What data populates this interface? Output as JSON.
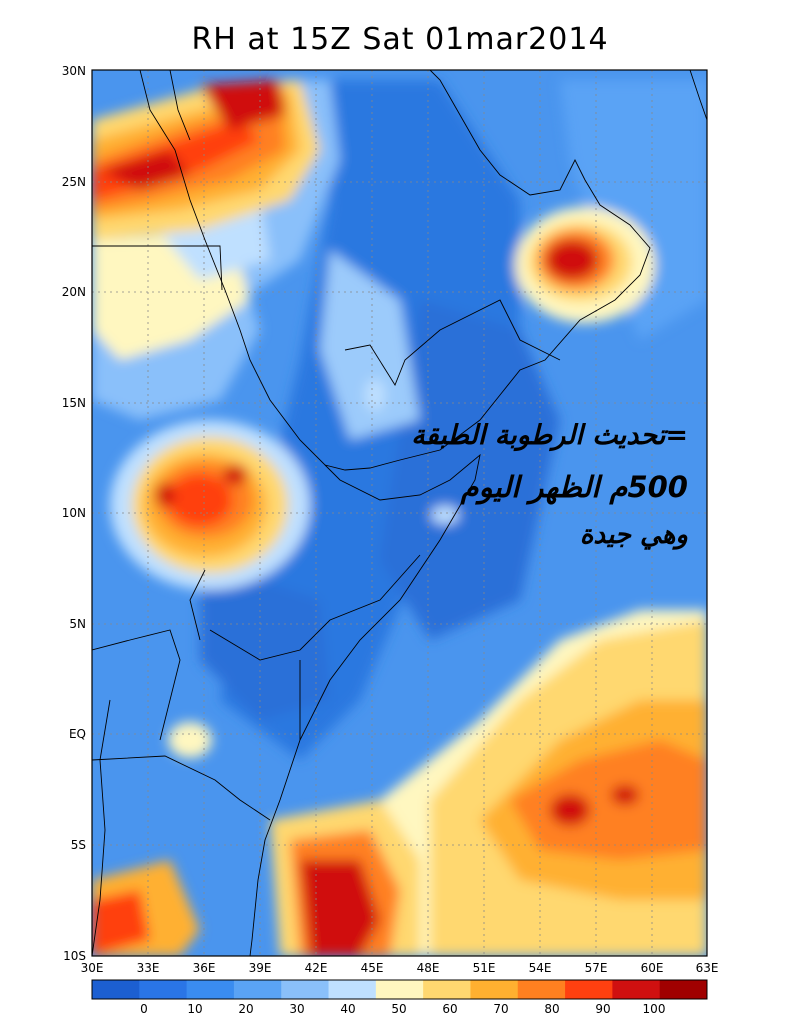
{
  "title": "RH at 15Z Sat 01mar2014",
  "overlay_text": {
    "line1": "=تحديث الرطوبة الطبقة",
    "line2": "500م الظهر اليوم",
    "line3": "وهي جيدة"
  },
  "map": {
    "lat_labels": [
      "30N",
      "25N",
      "20N",
      "15N",
      "10N",
      "5N",
      "EQ",
      "5S",
      "10S"
    ],
    "lon_labels": [
      "30E",
      "33E",
      "36E",
      "39E",
      "42E",
      "45E",
      "48E",
      "51E",
      "54E",
      "57E",
      "60E",
      "63E"
    ],
    "lat_range": [
      -10,
      30
    ],
    "lon_range": [
      30,
      63
    ]
  },
  "colorbar": {
    "labels": [
      "0",
      "10",
      "20",
      "30",
      "40",
      "50",
      "60",
      "70",
      "80",
      "90",
      "100"
    ],
    "colors": [
      "#1c5fd1",
      "#2a75e6",
      "#3a8cf0",
      "#5aa3f5",
      "#8ac0fa",
      "#bfe0ff",
      "#fff7c0",
      "#ffd870",
      "#ffb030",
      "#ff8020",
      "#ff4010",
      "#d01010",
      "#a00000"
    ]
  }
}
